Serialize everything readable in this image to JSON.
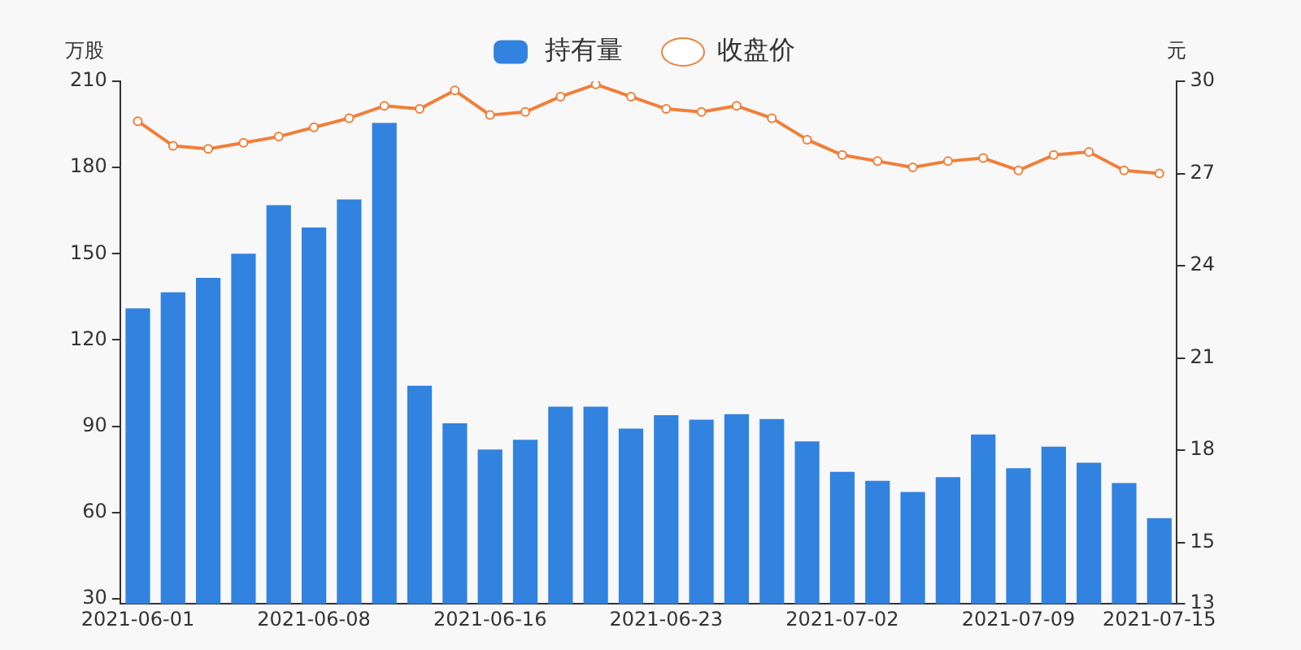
{
  "chart_data": {
    "type": "bar",
    "ylabel": "万股",
    "y2label": "元",
    "categories": [
      "2021-06-01",
      null,
      null,
      null,
      null,
      "2021-06-08",
      null,
      null,
      null,
      null,
      "2021-06-16",
      null,
      null,
      null,
      null,
      "2021-06-23",
      null,
      null,
      null,
      null,
      "2021-07-02",
      null,
      null,
      null,
      null,
      "2021-07-09",
      null,
      null,
      null,
      "2021-07-15"
    ],
    "series": [
      {
        "name": "持有量",
        "color": "#3282e0",
        "values": [
          131.0,
          136.6,
          141.6,
          150.0,
          166.9,
          159.1,
          168.9,
          195.5,
          104.1,
          91.0,
          81.9,
          85.3,
          96.8,
          96.8,
          89.2,
          93.8,
          92.3,
          94.2,
          92.5,
          84.7,
          74.1,
          71.0,
          67.1,
          72.3,
          87.1,
          75.4,
          82.9,
          77.3,
          70.2,
          58.0
        ]
      },
      {
        "name": "收盘价",
        "type": "line",
        "axis": "y2",
        "color": "#f07f3a",
        "marker": "circle",
        "values": [
          28.7,
          27.9,
          27.8,
          28.0,
          28.2,
          28.5,
          28.8,
          29.2,
          29.1,
          29.7,
          28.9,
          29.0,
          29.5,
          29.9,
          29.5,
          29.1,
          29.0,
          29.2,
          28.8,
          28.1,
          27.6,
          27.4,
          27.2,
          27.4,
          27.5,
          27.1,
          27.6,
          27.7,
          27.1,
          27.0
        ]
      }
    ],
    "ylim": [
      28.2,
      210
    ],
    "yticks": [
      30,
      60,
      90,
      120,
      150,
      180,
      210
    ],
    "y2lim": [
      13,
      30
    ],
    "y2ticks": [
      13,
      15,
      18,
      21,
      24,
      27,
      30
    ],
    "grid": false,
    "legend": "top"
  }
}
